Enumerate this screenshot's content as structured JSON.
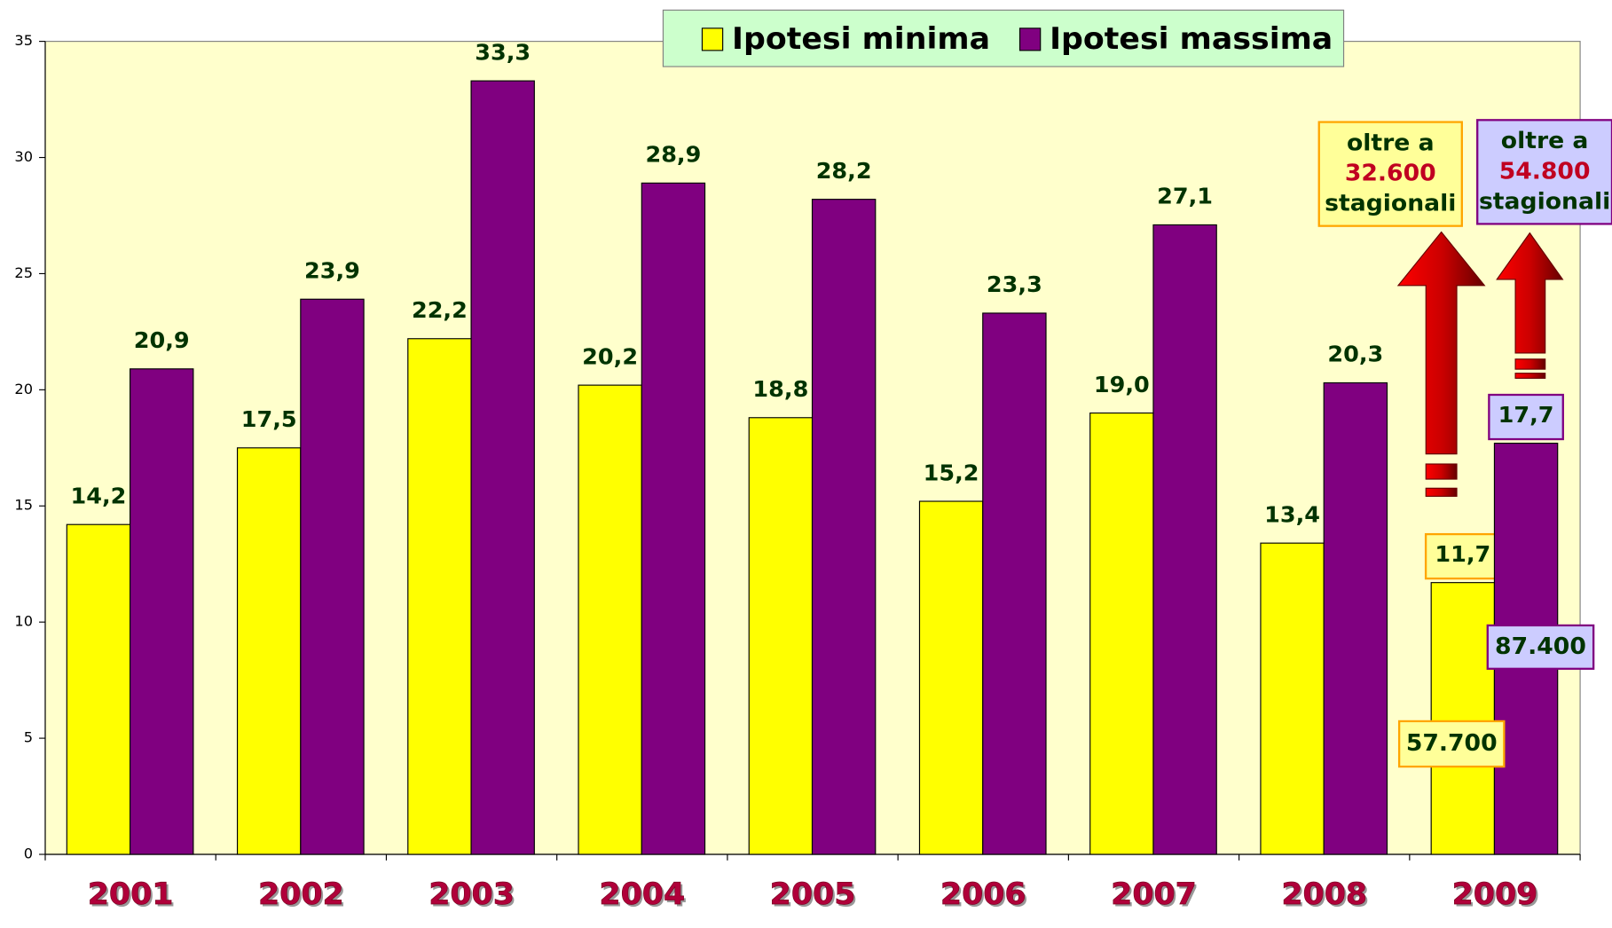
{
  "chart_data": {
    "type": "bar",
    "categories": [
      "2001",
      "2002",
      "2003",
      "2004",
      "2005",
      "2006",
      "2007",
      "2008",
      "2009"
    ],
    "series": [
      {
        "name": "Ipotesi minima",
        "color": "#ffff00",
        "values": [
          14.2,
          17.5,
          22.2,
          20.2,
          18.8,
          15.2,
          19.0,
          13.4,
          11.7
        ],
        "value_labels": [
          "14,2",
          "17,5",
          "22,2",
          "20,2",
          "18,8",
          "15,2",
          "19,0",
          "13,4",
          "11,7"
        ]
      },
      {
        "name": "Ipotesi massima",
        "color": "#800080",
        "values": [
          20.9,
          23.9,
          33.3,
          28.9,
          28.2,
          23.3,
          27.1,
          20.3,
          17.7
        ],
        "value_labels": [
          "20,9",
          "23,9",
          "33,3",
          "28,9",
          "28,2",
          "23,3",
          "27,1",
          "20,3",
          "17,7"
        ]
      }
    ],
    "ylim": [
      0,
      35
    ],
    "yticks": [
      0,
      5,
      10,
      15,
      20,
      25,
      30,
      35
    ],
    "grid": false,
    "legend": "top",
    "annotations": [
      {
        "lines": [
          "oltre a",
          "32.600",
          "stagionali"
        ]
      },
      {
        "lines": [
          "oltre a",
          "54.800",
          "stagionali"
        ]
      },
      {
        "lines": [
          "57.700"
        ]
      },
      {
        "lines": [
          "87.400"
        ]
      }
    ]
  }
}
